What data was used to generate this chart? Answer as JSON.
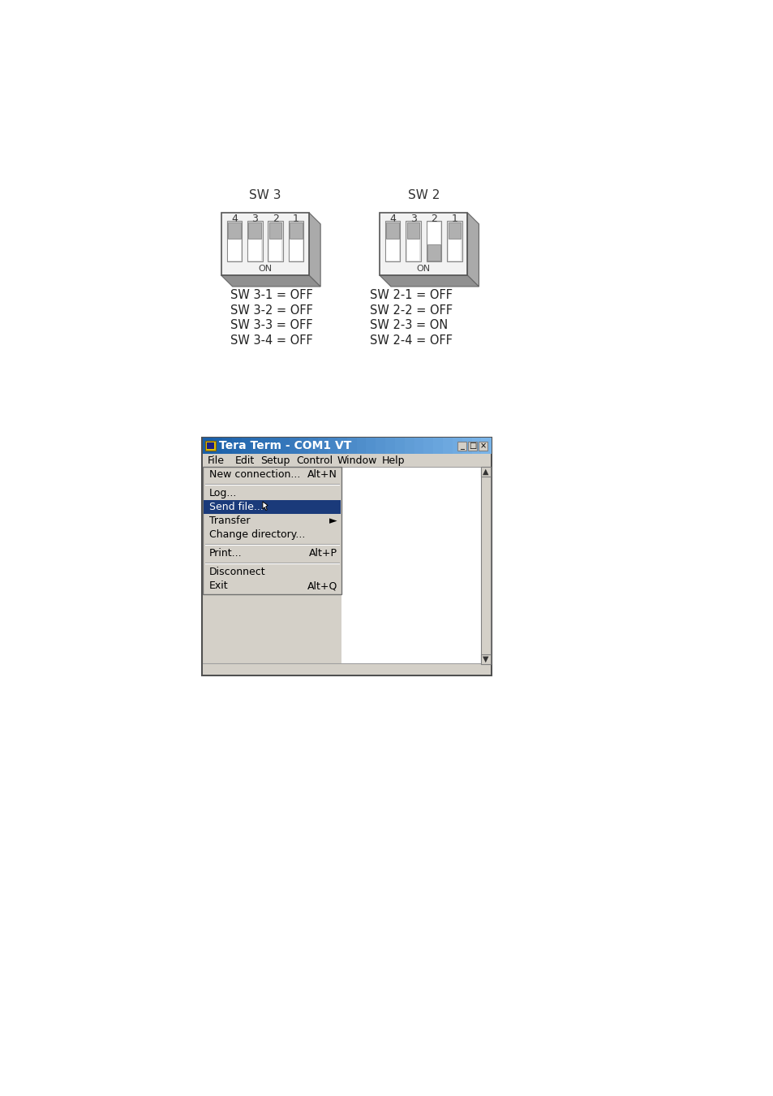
{
  "background_color": "#ffffff",
  "sw3_label": "SW 3",
  "sw2_label": "SW 2",
  "sw3_switch_labels": [
    "4",
    "3",
    "2",
    "1"
  ],
  "sw2_switch_labels": [
    "4",
    "3",
    "2",
    "1"
  ],
  "sw3_on_states": [
    false,
    false,
    false,
    false
  ],
  "sw2_on_states": [
    false,
    false,
    true,
    false
  ],
  "sw3_text_lines": [
    "SW 3-1 = OFF",
    "SW 3-2 = OFF",
    "SW 3-3 = OFF",
    "SW 3-4 = OFF"
  ],
  "sw2_text_lines": [
    "SW 2-1 = OFF",
    "SW 2-2 = OFF",
    "SW 2-3 = ON",
    "SW 2-4 = OFF"
  ],
  "title_bar_title": "Tera Term - COM1 VT",
  "menu_items": [
    "File",
    "Edit",
    "Setup",
    "Control",
    "Window",
    "Help"
  ],
  "title_bar_color_left": "#1a5fa8",
  "title_bar_color_right": "#7ab4e8",
  "menu_bg": "#d4d0c8",
  "menu_highlight_color": "#1a3a7a",
  "window_bg": "#d4d0c8",
  "dip_body_color": "#f2f2f2",
  "dip_shadow_dark": "#909090",
  "dip_shadow_right": "#aaaaaa"
}
